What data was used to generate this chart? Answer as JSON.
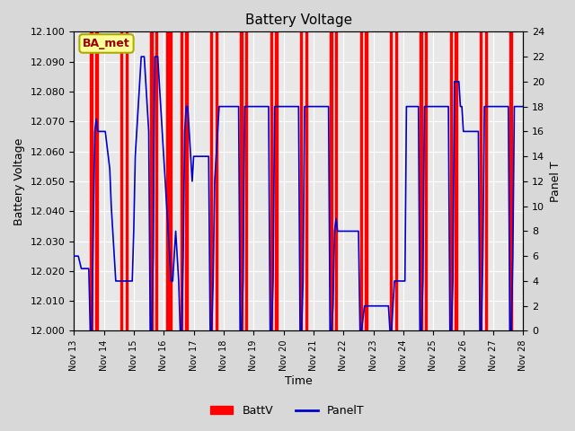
{
  "title": "Battery Voltage",
  "ylabel_left": "Battery Voltage",
  "ylabel_right": "Panel T",
  "xlabel": "Time",
  "ylim_left": [
    12.0,
    12.1
  ],
  "ylim_right": [
    0,
    24
  ],
  "yticks_right": [
    0,
    2,
    4,
    6,
    8,
    10,
    12,
    14,
    16,
    18,
    20,
    22,
    24
  ],
  "bg_color": "#d8d8d8",
  "plot_bg_color": "#e8e8e8",
  "annotation_text": "BA_met",
  "annotation_bg": "#ffff99",
  "annotation_border": "#aaaa00",
  "red_bar_color": "#ff0000",
  "blue_line_color": "#0000cc",
  "x_tick_labels": [
    "Nov 13",
    "Nov 14",
    "Nov 15",
    "Nov 16",
    "Nov 17",
    "Nov 18",
    "Nov 19",
    "Nov 20",
    "Nov 21",
    "Nov 22",
    "Nov 23",
    "Nov 24",
    "Nov 25",
    "Nov 26",
    "Nov 27",
    "Nov 28"
  ],
  "x_tick_positions": [
    0,
    1,
    2,
    3,
    4,
    5,
    6,
    7,
    8,
    9,
    10,
    11,
    12,
    13,
    14,
    15
  ],
  "red_bars": [
    [
      0.55,
      0.62
    ],
    [
      0.72,
      0.79
    ],
    [
      1.55,
      1.62
    ],
    [
      1.72,
      1.79
    ],
    [
      2.55,
      2.62
    ],
    [
      2.72,
      2.79
    ],
    [
      3.07,
      3.14
    ],
    [
      3.18,
      3.25
    ],
    [
      3.55,
      3.62
    ],
    [
      3.72,
      3.79
    ],
    [
      4.55,
      4.62
    ],
    [
      4.72,
      4.79
    ],
    [
      5.55,
      5.62
    ],
    [
      5.72,
      5.79
    ],
    [
      6.55,
      6.62
    ],
    [
      6.72,
      6.79
    ],
    [
      7.55,
      7.62
    ],
    [
      7.72,
      7.79
    ],
    [
      8.55,
      8.62
    ],
    [
      8.72,
      8.79
    ],
    [
      9.55,
      9.62
    ],
    [
      9.72,
      9.79
    ],
    [
      10.55,
      10.62
    ],
    [
      10.72,
      10.79
    ],
    [
      11.55,
      11.62
    ],
    [
      11.72,
      11.79
    ],
    [
      12.55,
      12.62
    ],
    [
      12.72,
      12.79
    ],
    [
      13.55,
      13.62
    ],
    [
      13.72,
      13.79
    ],
    [
      14.55,
      14.62
    ]
  ],
  "blue_x": [
    0.0,
    0.05,
    0.1,
    0.15,
    0.2,
    0.25,
    0.3,
    0.35,
    0.4,
    0.45,
    0.5,
    0.55,
    0.6,
    0.65,
    0.7,
    0.75,
    0.8,
    0.85,
    0.9,
    0.95,
    1.0,
    1.05,
    1.1,
    1.15,
    1.2,
    1.25,
    1.3,
    1.35,
    1.4,
    1.45,
    1.5,
    1.55,
    1.6,
    1.65,
    1.7,
    1.75,
    1.8,
    1.85,
    1.9,
    1.95,
    2.0,
    2.05,
    2.1,
    2.15,
    2.2,
    2.25,
    2.3,
    2.35,
    2.4,
    2.45,
    2.5,
    2.55,
    2.6,
    2.65,
    2.7,
    2.75,
    2.8,
    2.85,
    2.9,
    2.95,
    3.0,
    3.05,
    3.1,
    3.15,
    3.2,
    3.25,
    3.3,
    3.35,
    3.4,
    3.45,
    3.5,
    3.55,
    3.6,
    3.65,
    3.7,
    3.75,
    3.8,
    3.85,
    3.9,
    3.95,
    4.0,
    4.05,
    4.1,
    4.15,
    4.2,
    4.25,
    4.3,
    4.35,
    4.4,
    4.45,
    4.5,
    4.55,
    4.6,
    4.65,
    4.7,
    4.75,
    4.8,
    4.85,
    4.9,
    4.95,
    5.0,
    5.05,
    5.1,
    5.15,
    5.2,
    5.25,
    5.3,
    5.35,
    5.4,
    5.45,
    5.5,
    5.55,
    5.6,
    5.65,
    5.7,
    5.75,
    5.8,
    5.85,
    5.9,
    5.95,
    6.0,
    6.05,
    6.1,
    6.15,
    6.2,
    6.25,
    6.3,
    6.35,
    6.4,
    6.45,
    6.5,
    6.55,
    6.6,
    6.65,
    6.7,
    6.75,
    6.8,
    6.85,
    6.9,
    6.95,
    7.0,
    7.05,
    7.1,
    7.15,
    7.2,
    7.25,
    7.3,
    7.35,
    7.4,
    7.45,
    7.5,
    7.55,
    7.6,
    7.65,
    7.7,
    7.75,
    7.8,
    7.85,
    7.9,
    7.95,
    8.0,
    8.05,
    8.1,
    8.15,
    8.2,
    8.25,
    8.3,
    8.35,
    8.4,
    8.45,
    8.5,
    8.55,
    8.6,
    8.65,
    8.7,
    8.75,
    8.8,
    8.85,
    8.9,
    8.95,
    9.0,
    9.05,
    9.1,
    9.15,
    9.2,
    9.25,
    9.3,
    9.35,
    9.4,
    9.45,
    9.5,
    9.55,
    9.6,
    9.65,
    9.7,
    9.75,
    9.8,
    9.85,
    9.9,
    9.95,
    10.0,
    10.05,
    10.1,
    10.15,
    10.2,
    10.25,
    10.3,
    10.35,
    10.4,
    10.45,
    10.5,
    10.55,
    10.6,
    10.65,
    10.7,
    10.75,
    10.8,
    10.85,
    10.9,
    10.95,
    11.0,
    11.05,
    11.1,
    11.15,
    11.2,
    11.25,
    11.3,
    11.35,
    11.4,
    11.45,
    11.5,
    11.55,
    11.6,
    11.65,
    11.7,
    11.75,
    11.8,
    11.85,
    11.9,
    11.95,
    12.0,
    12.05,
    12.1,
    12.15,
    12.2,
    12.25,
    12.3,
    12.35,
    12.4,
    12.45,
    12.5,
    12.55,
    12.6,
    12.65,
    12.7,
    12.75,
    12.8,
    12.85,
    12.9,
    12.95,
    13.0,
    13.05,
    13.1,
    13.15,
    13.2,
    13.25,
    13.3,
    13.35,
    13.4,
    13.45,
    13.5,
    13.55,
    13.6,
    13.65,
    13.7,
    13.75,
    13.8,
    13.85,
    13.9,
    13.95,
    14.0,
    14.05,
    14.1,
    14.15,
    14.2,
    14.25,
    14.3,
    14.35,
    14.4,
    14.45,
    14.5,
    14.55,
    14.6,
    14.65,
    14.7,
    14.75,
    14.8,
    14.85,
    14.9,
    14.95,
    15.0
  ],
  "blue_y_panelT": [
    6,
    6,
    6,
    6,
    5.5,
    5,
    5,
    5,
    5,
    5,
    5,
    0,
    0,
    8,
    16,
    17,
    16,
    16,
    16,
    16,
    16,
    16,
    15,
    14,
    13,
    10,
    8,
    6,
    4,
    4,
    4,
    4,
    4,
    4,
    4,
    4,
    4,
    4,
    4,
    4,
    8,
    14,
    16,
    18,
    20,
    22,
    22,
    22,
    20,
    18,
    16,
    0,
    0,
    6,
    22,
    22,
    22,
    20,
    18,
    16,
    14,
    12,
    10,
    8,
    6,
    4,
    4,
    6,
    8,
    6,
    4,
    0,
    0,
    6,
    16,
    18,
    18,
    16,
    14,
    12,
    14,
    14,
    14,
    14,
    14,
    14,
    14,
    14,
    14,
    14,
    14,
    0,
    0,
    4,
    12,
    14,
    16,
    18,
    18,
    18,
    18,
    18,
    18,
    18,
    18,
    18,
    18,
    18,
    18,
    18,
    18,
    0,
    0,
    4,
    18,
    18,
    18,
    18,
    18,
    18,
    18,
    18,
    18,
    18,
    18,
    18,
    18,
    18,
    18,
    18,
    18,
    0,
    0,
    4,
    18,
    18,
    18,
    18,
    18,
    18,
    18,
    18,
    18,
    18,
    18,
    18,
    18,
    18,
    18,
    18,
    18,
    0,
    0,
    4,
    18,
    18,
    18,
    18,
    18,
    18,
    18,
    18,
    18,
    18,
    18,
    18,
    18,
    18,
    18,
    18,
    18,
    0,
    0,
    2,
    8,
    9,
    8,
    8,
    8,
    8,
    8,
    8,
    8,
    8,
    8,
    8,
    8,
    8,
    8,
    8,
    8,
    0,
    0,
    1,
    2,
    2,
    2,
    2,
    2,
    2,
    2,
    2,
    2,
    2,
    2,
    2,
    2,
    2,
    2,
    2,
    2,
    0,
    0,
    2,
    4,
    4,
    4,
    4,
    4,
    4,
    4,
    4,
    18,
    18,
    18,
    18,
    18,
    18,
    18,
    18,
    18,
    0,
    0,
    4,
    18,
    18,
    18,
    18,
    18,
    18,
    18,
    18,
    18,
    18,
    18,
    18,
    18,
    18,
    18,
    18,
    18,
    0,
    0,
    4,
    20,
    20,
    20,
    20,
    18,
    18,
    16,
    16,
    16,
    16,
    16,
    16,
    16,
    16,
    16,
    16,
    16,
    0,
    0,
    6,
    18,
    18,
    18,
    18,
    18,
    18,
    18,
    18,
    18,
    18,
    18,
    18,
    18,
    18,
    18,
    18,
    18,
    0,
    0,
    6,
    18,
    18,
    18,
    18,
    18,
    18,
    18
  ]
}
